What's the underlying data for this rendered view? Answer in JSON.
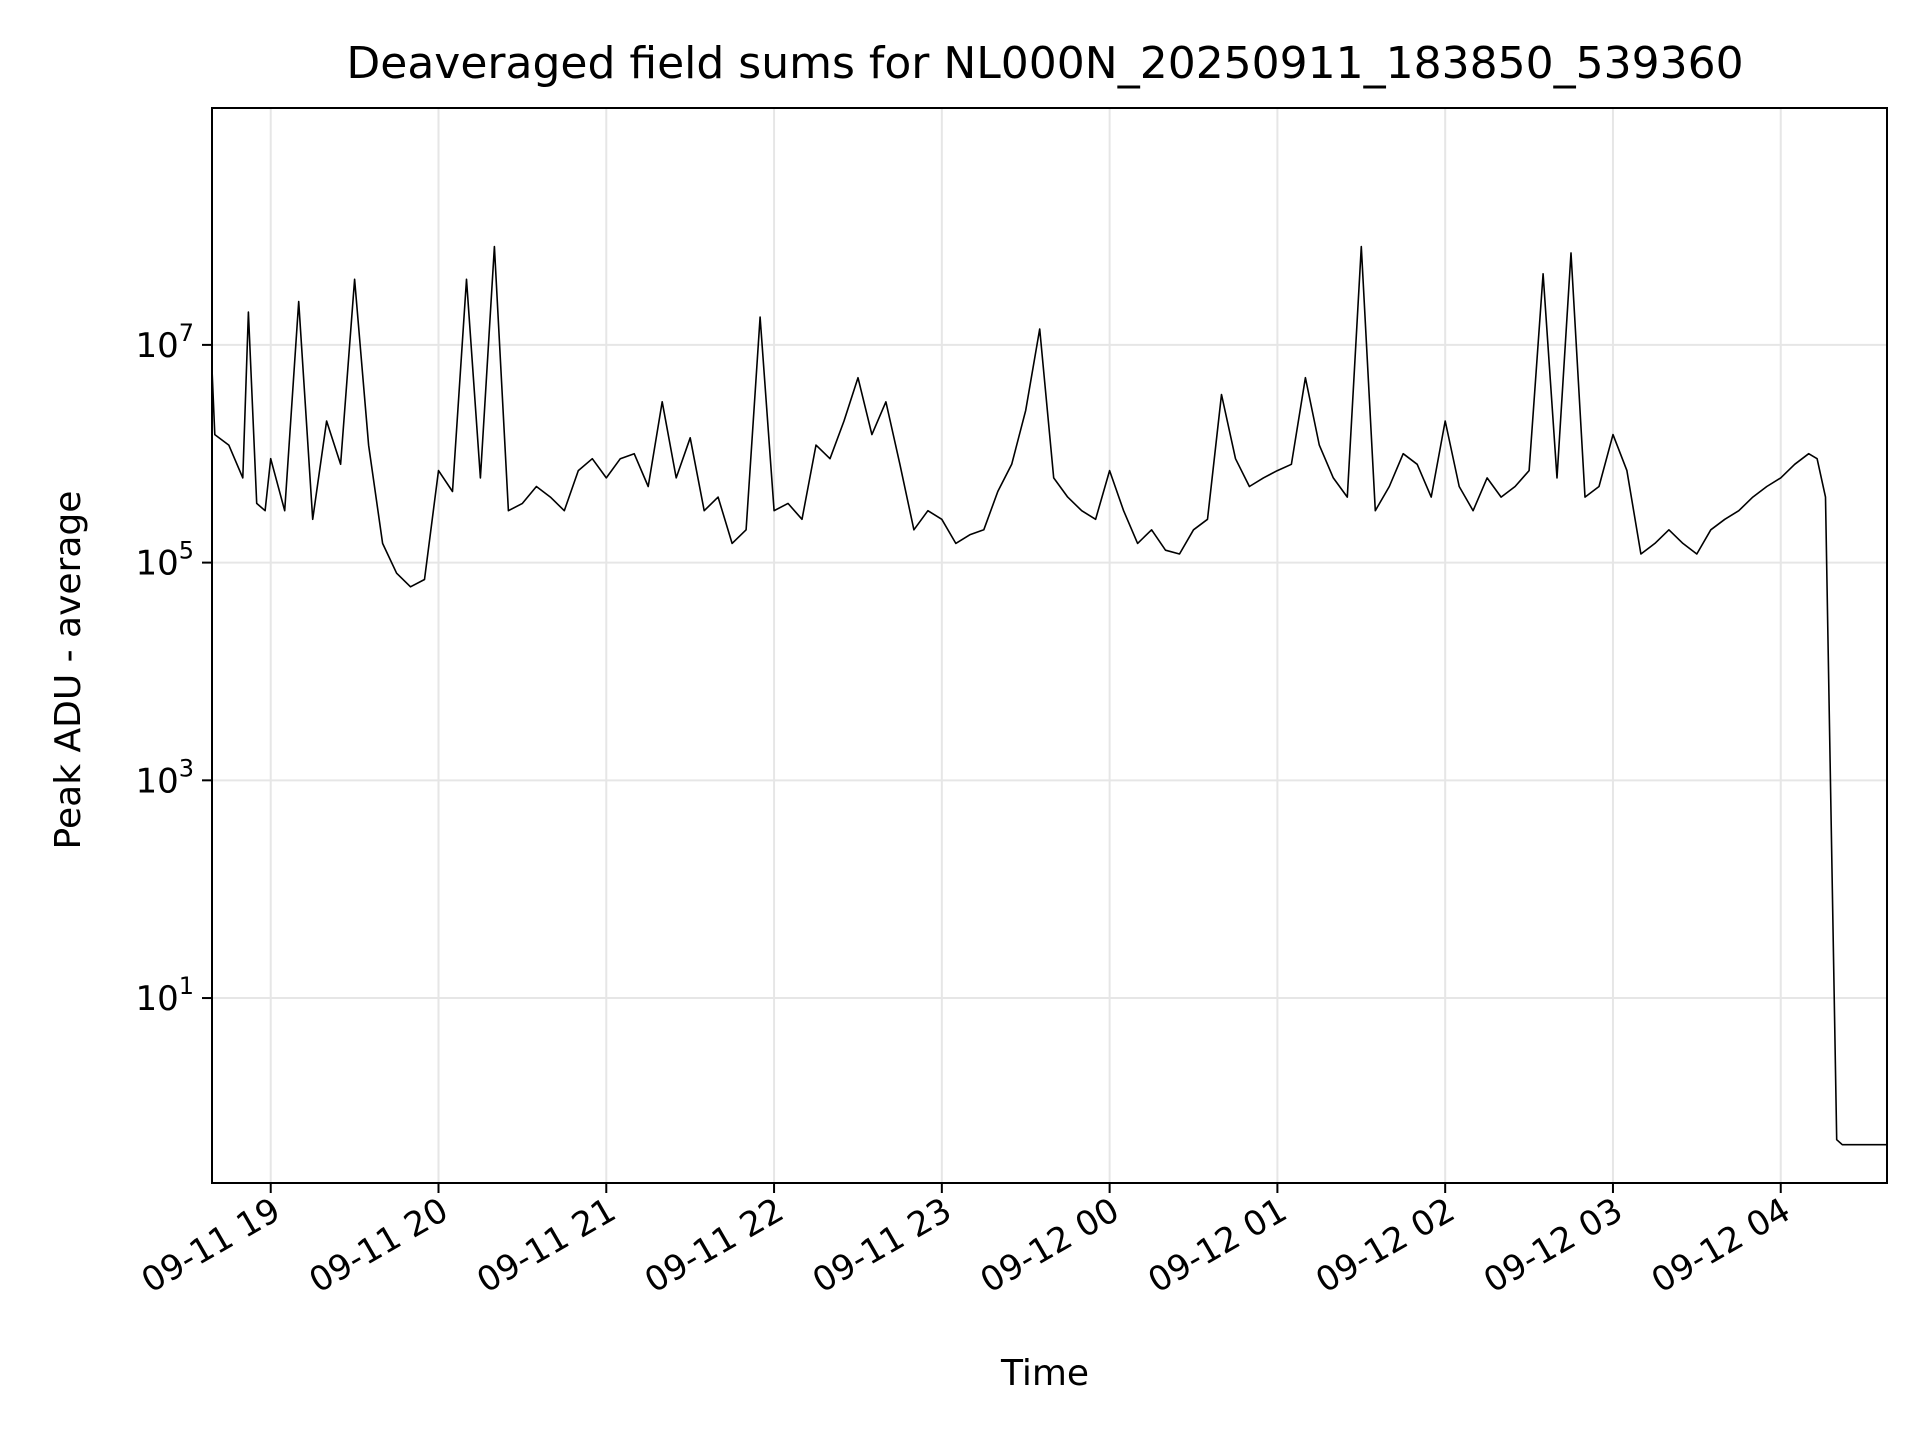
{
  "chart_data": {
    "type": "line",
    "title": "Deaveraged field sums for NL000N_20250911_183850_539360",
    "xlabel": "Time",
    "ylabel": "Peak ADU - average",
    "yscale": "log",
    "ylim": [
      0.2,
      1500000000
    ],
    "xlim": [
      "2025-09-11 18:39",
      "2025-09-12 04:38"
    ],
    "grid": true,
    "x_ticks": [
      {
        "value": "2025-09-11 19:00",
        "label": "09-11 19"
      },
      {
        "value": "2025-09-11 20:00",
        "label": "09-11 20"
      },
      {
        "value": "2025-09-11 21:00",
        "label": "09-11 21"
      },
      {
        "value": "2025-09-11 22:00",
        "label": "09-11 22"
      },
      {
        "value": "2025-09-11 23:00",
        "label": "09-11 23"
      },
      {
        "value": "2025-09-12 00:00",
        "label": "09-12 00"
      },
      {
        "value": "2025-09-12 01:00",
        "label": "09-12 01"
      },
      {
        "value": "2025-09-12 02:00",
        "label": "09-12 02"
      },
      {
        "value": "2025-09-12 03:00",
        "label": "09-12 03"
      },
      {
        "value": "2025-09-12 04:00",
        "label": "09-12 04"
      }
    ],
    "y_ticks": [
      {
        "value": 10,
        "base": "10",
        "exp": "1"
      },
      {
        "value": 1000,
        "base": "10",
        "exp": "3"
      },
      {
        "value": 100000,
        "base": "10",
        "exp": "5"
      },
      {
        "value": 10000000,
        "base": "10",
        "exp": "7"
      }
    ],
    "series": [
      {
        "color": "#000000",
        "x": [
          "2025-09-11 18:39",
          "2025-09-11 18:40",
          "2025-09-11 18:45",
          "2025-09-11 18:50",
          "2025-09-11 18:52",
          "2025-09-11 18:55",
          "2025-09-11 18:58",
          "2025-09-11 19:00",
          "2025-09-11 19:05",
          "2025-09-11 19:10",
          "2025-09-11 19:15",
          "2025-09-11 19:20",
          "2025-09-11 19:25",
          "2025-09-11 19:30",
          "2025-09-11 19:35",
          "2025-09-11 19:40",
          "2025-09-11 19:45",
          "2025-09-11 19:50",
          "2025-09-11 19:55",
          "2025-09-11 20:00",
          "2025-09-11 20:05",
          "2025-09-11 20:10",
          "2025-09-11 20:15",
          "2025-09-11 20:20",
          "2025-09-11 20:25",
          "2025-09-11 20:30",
          "2025-09-11 20:35",
          "2025-09-11 20:40",
          "2025-09-11 20:45",
          "2025-09-11 20:50",
          "2025-09-11 20:55",
          "2025-09-11 21:00",
          "2025-09-11 21:05",
          "2025-09-11 21:10",
          "2025-09-11 21:15",
          "2025-09-11 21:20",
          "2025-09-11 21:25",
          "2025-09-11 21:30",
          "2025-09-11 21:35",
          "2025-09-11 21:40",
          "2025-09-11 21:45",
          "2025-09-11 21:50",
          "2025-09-11 21:55",
          "2025-09-11 22:00",
          "2025-09-11 22:05",
          "2025-09-11 22:10",
          "2025-09-11 22:15",
          "2025-09-11 22:20",
          "2025-09-11 22:25",
          "2025-09-11 22:30",
          "2025-09-11 22:35",
          "2025-09-11 22:40",
          "2025-09-11 22:45",
          "2025-09-11 22:50",
          "2025-09-11 22:55",
          "2025-09-11 23:00",
          "2025-09-11 23:05",
          "2025-09-11 23:10",
          "2025-09-11 23:15",
          "2025-09-11 23:20",
          "2025-09-11 23:25",
          "2025-09-11 23:30",
          "2025-09-11 23:35",
          "2025-09-11 23:40",
          "2025-09-11 23:45",
          "2025-09-11 23:50",
          "2025-09-11 23:55",
          "2025-09-12 00:00",
          "2025-09-12 00:05",
          "2025-09-12 00:10",
          "2025-09-12 00:15",
          "2025-09-12 00:20",
          "2025-09-12 00:25",
          "2025-09-12 00:30",
          "2025-09-12 00:35",
          "2025-09-12 00:40",
          "2025-09-12 00:45",
          "2025-09-12 00:50",
          "2025-09-12 00:55",
          "2025-09-12 01:00",
          "2025-09-12 01:05",
          "2025-09-12 01:10",
          "2025-09-12 01:15",
          "2025-09-12 01:20",
          "2025-09-12 01:25",
          "2025-09-12 01:30",
          "2025-09-12 01:35",
          "2025-09-12 01:40",
          "2025-09-12 01:45",
          "2025-09-12 01:50",
          "2025-09-12 01:55",
          "2025-09-12 02:00",
          "2025-09-12 02:05",
          "2025-09-12 02:10",
          "2025-09-12 02:15",
          "2025-09-12 02:20",
          "2025-09-12 02:25",
          "2025-09-12 02:30",
          "2025-09-12 02:35",
          "2025-09-12 02:40",
          "2025-09-12 02:45",
          "2025-09-12 02:50",
          "2025-09-12 02:55",
          "2025-09-12 03:00",
          "2025-09-12 03:05",
          "2025-09-12 03:10",
          "2025-09-12 03:15",
          "2025-09-12 03:20",
          "2025-09-12 03:25",
          "2025-09-12 03:30",
          "2025-09-12 03:35",
          "2025-09-12 03:40",
          "2025-09-12 03:45",
          "2025-09-12 03:50",
          "2025-09-12 03:55",
          "2025-09-12 04:00",
          "2025-09-12 04:05",
          "2025-09-12 04:10",
          "2025-09-12 04:13",
          "2025-09-12 04:16",
          "2025-09-12 04:20",
          "2025-09-12 04:22",
          "2025-09-12 04:24",
          "2025-09-12 04:26",
          "2025-09-12 04:28",
          "2025-09-12 04:30",
          "2025-09-12 04:34",
          "2025-09-12 04:38"
        ],
        "y": [
          6000000,
          1500000,
          1200000,
          600000,
          20000000,
          350000,
          300000,
          900000,
          300000,
          25000000,
          250000,
          2000000,
          800000,
          40000000,
          1200000,
          150000,
          80000,
          60000,
          70000,
          700000,
          450000,
          40000000,
          600000,
          80000000,
          300000,
          350000,
          500000,
          400000,
          300000,
          700000,
          900000,
          600000,
          900000,
          1000000,
          500000,
          3000000,
          600000,
          1400000,
          300000,
          400000,
          150000,
          200000,
          18000000,
          300000,
          350000,
          250000,
          1200000,
          900000,
          2000000,
          5000000,
          1500000,
          3000000,
          800000,
          200000,
          300000,
          250000,
          150000,
          180000,
          200000,
          450000,
          800000,
          2500000,
          14000000,
          600000,
          400000,
          300000,
          250000,
          700000,
          300000,
          150000,
          200000,
          130000,
          120000,
          200000,
          250000,
          3500000,
          900000,
          500000,
          600000,
          700000,
          800000,
          5000000,
          1200000,
          600000,
          400000,
          80000000,
          300000,
          500000,
          1000000,
          800000,
          400000,
          2000000,
          500000,
          300000,
          600000,
          400000,
          500000,
          700000,
          45000000,
          600000,
          70000000,
          400000,
          500000,
          1500000,
          700000,
          120000,
          150000,
          200000,
          150000,
          120000,
          200000,
          250000,
          300000,
          400000,
          500000,
          600000,
          800000,
          1000000,
          900000,
          400000,
          0.5,
          0.45,
          0.45,
          0.45,
          0.45,
          0.45,
          0.45,
          0.45
        ]
      }
    ]
  }
}
